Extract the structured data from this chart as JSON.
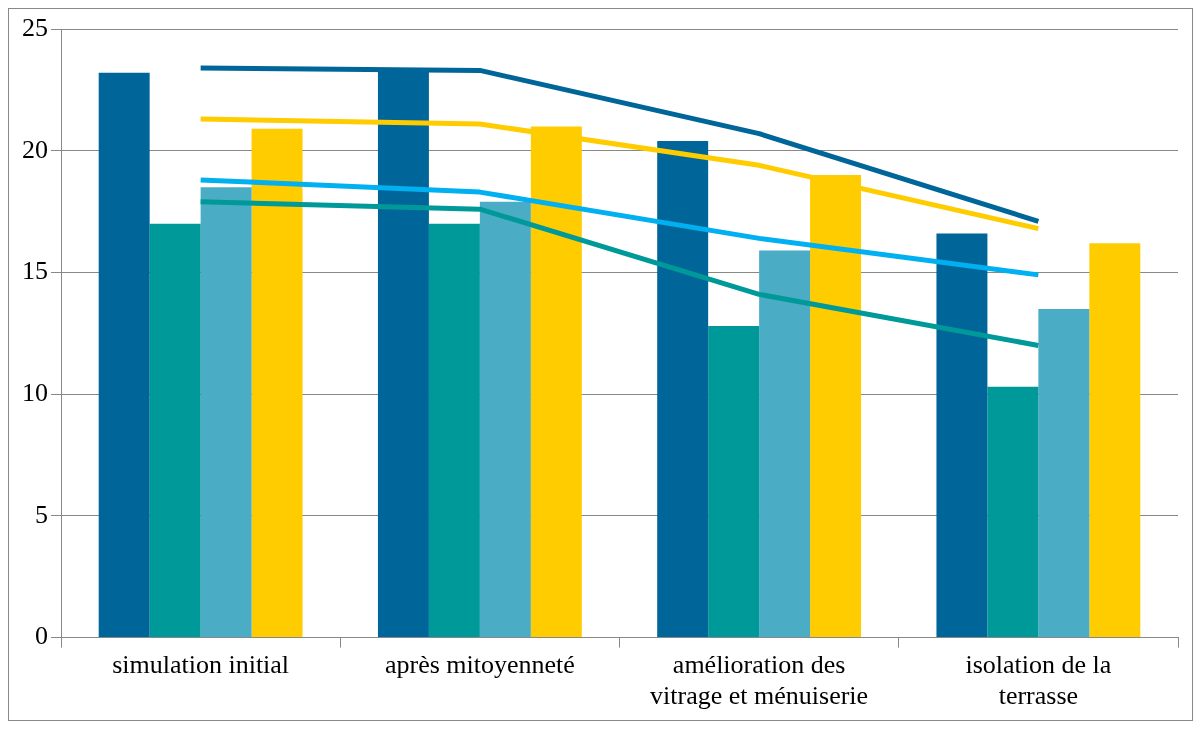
{
  "chart_data": {
    "type": "bar",
    "categories": [
      "simulation initial",
      "après mitoyenneté",
      "amélioration des vitrage et ménuiserie",
      "isolation de la terrasse"
    ],
    "series": [
      {
        "color": "#006699",
        "values": [
          23.2,
          23.3,
          20.4,
          16.6
        ]
      },
      {
        "color": "#009999",
        "values": [
          17.0,
          17.0,
          12.8,
          10.3
        ]
      },
      {
        "color": "#4bacc6",
        "values": [
          18.5,
          17.9,
          15.9,
          13.5
        ]
      },
      {
        "color": "#ffcc00",
        "values": [
          20.9,
          21.0,
          19.0,
          16.2
        ]
      },
      {
        "type": "line",
        "color": "#00669a",
        "values": [
          23.4,
          23.3,
          20.7,
          17.1
        ]
      },
      {
        "type": "line",
        "color": "#009999",
        "values": [
          17.9,
          17.6,
          14.1,
          12.0
        ]
      },
      {
        "type": "line",
        "color": "#00b0f0",
        "values": [
          18.8,
          18.3,
          16.4,
          14.9
        ]
      },
      {
        "type": "line",
        "color": "#ffcc00",
        "values": [
          21.3,
          21.1,
          19.4,
          16.8
        ]
      }
    ],
    "ylim": [
      0,
      25
    ],
    "yticks": [
      0,
      5,
      10,
      15,
      20,
      25
    ],
    "grid": "y",
    "legend": false,
    "marker": "none",
    "line_style": "solid"
  }
}
